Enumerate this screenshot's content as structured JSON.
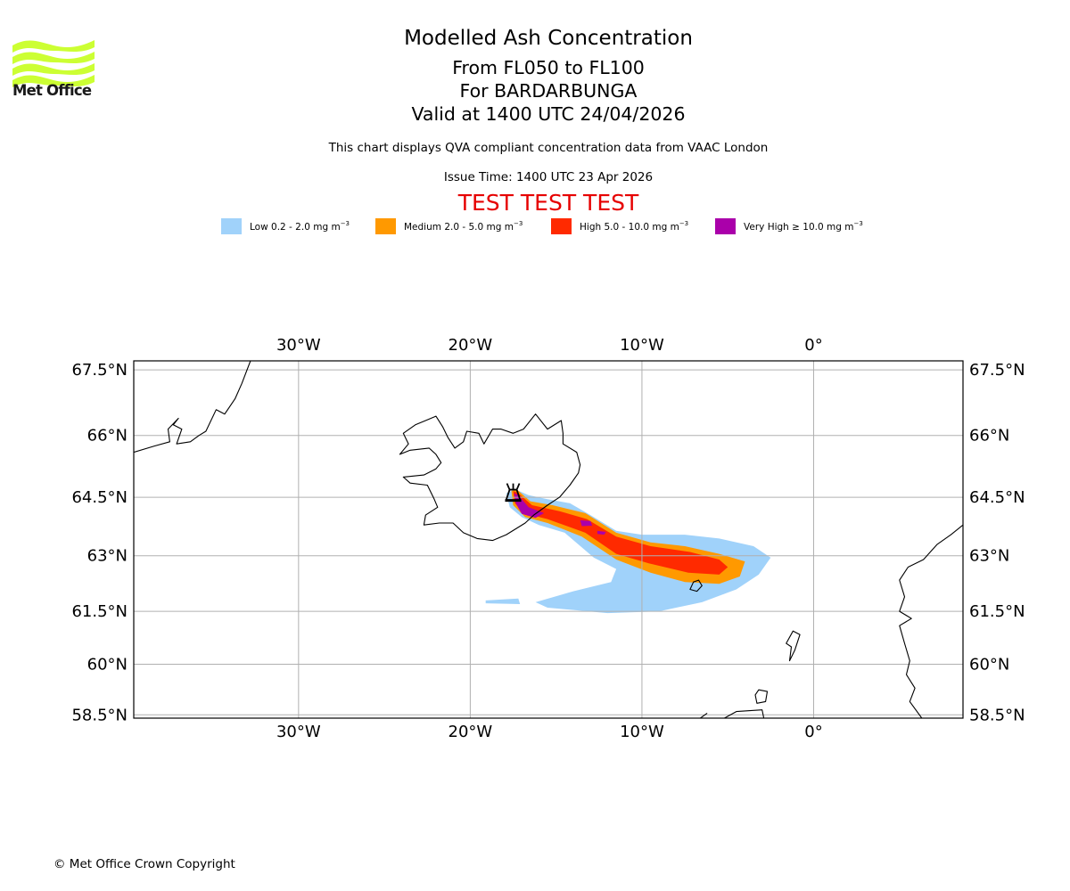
{
  "logo": {
    "text": "Met Office",
    "color": "#ccff33"
  },
  "titles": {
    "main": "Modelled Ash Concentration",
    "levels": "From FL050 to FL100",
    "volcano": "For BARDARBUNGA",
    "valid": "Valid at 1400 UTC 24/04/2026",
    "description": "This chart displays QVA compliant concentration data from VAAC London",
    "issue": "Issue Time: 1400 UTC 23 Apr 2026",
    "test_banner": "TEST TEST TEST"
  },
  "legend": [
    {
      "label": "Low 0.2 - 2.0 mg m",
      "exp": "−3",
      "color": "#a0d2fa"
    },
    {
      "label": "Medium 2.0 - 5.0 mg m",
      "exp": "−3",
      "color": "#ff9900"
    },
    {
      "label": "High 5.0 - 10.0 mg m",
      "exp": "−3",
      "color": "#ff2a00"
    },
    {
      "label": "Very High ≥ 10.0 mg m",
      "exp": "−3",
      "color": "#aa00aa"
    }
  ],
  "copyright": "© Met Office Crown Copyright",
  "chart_data": {
    "type": "map",
    "title": "Modelled Ash Concentration",
    "extent": {
      "lon": [
        -39.6,
        8.7
      ],
      "lat": [
        58.4,
        67.7
      ]
    },
    "grid": true,
    "lon_ticks": [
      {
        "value": -30,
        "label": "30°W"
      },
      {
        "value": -20,
        "label": "20°W"
      },
      {
        "value": -10,
        "label": "10°W"
      },
      {
        "value": 0,
        "label": "0°"
      }
    ],
    "lat_ticks": [
      {
        "value": 67.5,
        "label": "67.5°N"
      },
      {
        "value": 66,
        "label": "66°N"
      },
      {
        "value": 64.5,
        "label": "64.5°N"
      },
      {
        "value": 63,
        "label": "63°N"
      },
      {
        "value": 61.5,
        "label": "61.5°N"
      },
      {
        "value": 60,
        "label": "60°N"
      },
      {
        "value": 58.5,
        "label": "58.5°N"
      }
    ],
    "volcano": {
      "name": "BARDARBUNGA",
      "lon": -17.5,
      "lat": 64.6
    },
    "ash_layers": [
      {
        "level": "Low",
        "color": "#a0d2fa",
        "polygon": [
          [
            -17.9,
            64.6
          ],
          [
            -17.4,
            64.7
          ],
          [
            -16.6,
            64.55
          ],
          [
            -15.5,
            64.45
          ],
          [
            -14.2,
            64.35
          ],
          [
            -13,
            64.05
          ],
          [
            -11.5,
            63.65
          ],
          [
            -10,
            63.55
          ],
          [
            -7.5,
            63.55
          ],
          [
            -5.5,
            63.45
          ],
          [
            -3.5,
            63.25
          ],
          [
            -2.5,
            62.95
          ],
          [
            -3.2,
            62.5
          ],
          [
            -4.5,
            62.1
          ],
          [
            -6.5,
            61.75
          ],
          [
            -9,
            61.5
          ],
          [
            -12,
            61.45
          ],
          [
            -15.5,
            61.6
          ],
          [
            -16.2,
            61.75
          ],
          [
            -14,
            62.05
          ],
          [
            -11.8,
            62.3
          ],
          [
            -11.5,
            62.65
          ],
          [
            -12.8,
            62.95
          ],
          [
            -14.5,
            63.6
          ],
          [
            -16,
            63.8
          ],
          [
            -17,
            64.0
          ],
          [
            -17.7,
            64.25
          ]
        ]
      },
      {
        "level": "Low",
        "color": "#a0d2fa",
        "polygon": [
          [
            -19.1,
            61.8
          ],
          [
            -17.2,
            61.85
          ],
          [
            -17.1,
            61.7
          ],
          [
            -19.1,
            61.72
          ]
        ]
      },
      {
        "level": "Medium",
        "color": "#ff9900",
        "polygon": [
          [
            -17.6,
            64.65
          ],
          [
            -17.3,
            64.7
          ],
          [
            -16.5,
            64.4
          ],
          [
            -15.2,
            64.3
          ],
          [
            -13.3,
            64.1
          ],
          [
            -11.5,
            63.6
          ],
          [
            -9.5,
            63.35
          ],
          [
            -7.5,
            63.25
          ],
          [
            -5.5,
            63.05
          ],
          [
            -4.0,
            62.85
          ],
          [
            -4.3,
            62.45
          ],
          [
            -5.5,
            62.25
          ],
          [
            -7.5,
            62.3
          ],
          [
            -9.5,
            62.55
          ],
          [
            -11.5,
            62.9
          ],
          [
            -13.5,
            63.5
          ],
          [
            -15.5,
            63.85
          ],
          [
            -16.8,
            64.0
          ],
          [
            -17.5,
            64.3
          ]
        ]
      },
      {
        "level": "High",
        "color": "#ff2a00",
        "polygon": [
          [
            -17.5,
            64.65
          ],
          [
            -17.25,
            64.62
          ],
          [
            -16.4,
            64.3
          ],
          [
            -14.8,
            64.15
          ],
          [
            -13.2,
            63.95
          ],
          [
            -11.5,
            63.5
          ],
          [
            -9.5,
            63.25
          ],
          [
            -7.2,
            63.1
          ],
          [
            -5.5,
            62.9
          ],
          [
            -5.0,
            62.7
          ],
          [
            -5.5,
            62.5
          ],
          [
            -7.3,
            62.55
          ],
          [
            -9.6,
            62.8
          ],
          [
            -11.5,
            63.05
          ],
          [
            -13.3,
            63.6
          ],
          [
            -15.5,
            63.95
          ],
          [
            -16.9,
            64.1
          ],
          [
            -17.4,
            64.35
          ]
        ]
      },
      {
        "level": "Very High",
        "color": "#aa00aa",
        "polygon": [
          [
            -17.45,
            64.6
          ],
          [
            -17.2,
            64.55
          ],
          [
            -16.6,
            64.25
          ],
          [
            -15.7,
            64.1
          ],
          [
            -16.2,
            63.98
          ],
          [
            -17.0,
            64.08
          ],
          [
            -17.35,
            64.35
          ]
        ]
      },
      {
        "level": "Very High",
        "color": "#aa00aa",
        "polygon": [
          [
            -13.6,
            63.92
          ],
          [
            -13.0,
            63.9
          ],
          [
            -12.9,
            63.78
          ],
          [
            -13.5,
            63.77
          ]
        ]
      },
      {
        "level": "Very High",
        "color": "#aa00aa",
        "polygon": [
          [
            -12.6,
            63.65
          ],
          [
            -12.1,
            63.62
          ],
          [
            -12.2,
            63.55
          ],
          [
            -12.6,
            63.57
          ]
        ]
      }
    ],
    "coastlines": [
      {
        "name": "iceland",
        "closed": true,
        "points": [
          [
            -22.0,
            65.55
          ],
          [
            -22.4,
            65.7
          ],
          [
            -23.5,
            65.65
          ],
          [
            -24.1,
            65.55
          ],
          [
            -23.6,
            65.8
          ],
          [
            -23.9,
            66.05
          ],
          [
            -23.2,
            66.25
          ],
          [
            -22.6,
            66.35
          ],
          [
            -22.0,
            66.45
          ],
          [
            -21.6,
            66.2
          ],
          [
            -21.3,
            65.95
          ],
          [
            -20.9,
            65.7
          ],
          [
            -20.4,
            65.85
          ],
          [
            -20.2,
            66.1
          ],
          [
            -19.5,
            66.05
          ],
          [
            -19.2,
            65.8
          ],
          [
            -18.7,
            66.15
          ],
          [
            -18.2,
            66.15
          ],
          [
            -17.5,
            66.05
          ],
          [
            -16.9,
            66.15
          ],
          [
            -16.2,
            66.5
          ],
          [
            -15.5,
            66.15
          ],
          [
            -14.7,
            66.35
          ],
          [
            -14.6,
            66.05
          ],
          [
            -14.6,
            65.8
          ],
          [
            -13.8,
            65.6
          ],
          [
            -13.6,
            65.3
          ],
          [
            -13.7,
            65.1
          ],
          [
            -14.2,
            64.8
          ],
          [
            -14.8,
            64.5
          ],
          [
            -15.5,
            64.3
          ],
          [
            -16.3,
            64.05
          ],
          [
            -16.8,
            63.85
          ],
          [
            -17.9,
            63.55
          ],
          [
            -18.7,
            63.4
          ],
          [
            -19.6,
            63.45
          ],
          [
            -20.4,
            63.6
          ],
          [
            -21.0,
            63.85
          ],
          [
            -21.8,
            63.85
          ],
          [
            -22.7,
            63.8
          ],
          [
            -22.6,
            64.05
          ],
          [
            -21.9,
            64.25
          ],
          [
            -22.1,
            64.45
          ],
          [
            -22.5,
            64.8
          ],
          [
            -23.5,
            64.85
          ],
          [
            -23.9,
            65.0
          ],
          [
            -22.7,
            65.05
          ],
          [
            -22.0,
            65.2
          ],
          [
            -21.7,
            65.35
          ]
        ]
      },
      {
        "name": "greenland",
        "closed": false,
        "points": [
          [
            -39.6,
            65.6
          ],
          [
            -38.4,
            65.75
          ],
          [
            -37.5,
            65.85
          ],
          [
            -37.6,
            66.15
          ],
          [
            -37.0,
            66.4
          ],
          [
            -37.3,
            66.25
          ],
          [
            -36.8,
            66.15
          ],
          [
            -37.1,
            65.8
          ],
          [
            -36.3,
            65.85
          ],
          [
            -35.8,
            66.0
          ],
          [
            -35.4,
            66.1
          ],
          [
            -34.8,
            66.6
          ],
          [
            -34.3,
            66.5
          ],
          [
            -33.7,
            66.85
          ],
          [
            -33.3,
            67.2
          ],
          [
            -32.8,
            67.7
          ]
        ]
      },
      {
        "name": "norway",
        "closed": false,
        "points": [
          [
            8.7,
            63.8
          ],
          [
            8.0,
            63.55
          ],
          [
            7.2,
            63.3
          ],
          [
            6.4,
            62.9
          ],
          [
            5.5,
            62.7
          ],
          [
            5.0,
            62.35
          ],
          [
            5.3,
            61.9
          ],
          [
            5.0,
            61.5
          ],
          [
            5.7,
            61.3
          ],
          [
            5.0,
            61.1
          ],
          [
            5.3,
            60.6
          ],
          [
            5.6,
            60.1
          ],
          [
            5.4,
            59.7
          ],
          [
            5.9,
            59.3
          ],
          [
            5.6,
            58.9
          ],
          [
            6.3,
            58.4
          ]
        ]
      },
      {
        "name": "faroes",
        "closed": true,
        "points": [
          [
            -7.0,
            62.3
          ],
          [
            -6.7,
            62.35
          ],
          [
            -6.5,
            62.2
          ],
          [
            -6.8,
            62.05
          ],
          [
            -7.2,
            62.1
          ]
        ]
      },
      {
        "name": "shetland",
        "closed": true,
        "points": [
          [
            -1.2,
            60.95
          ],
          [
            -0.8,
            60.85
          ],
          [
            -1.1,
            60.4
          ],
          [
            -1.4,
            60.1
          ],
          [
            -1.3,
            60.5
          ],
          [
            -1.6,
            60.6
          ]
        ]
      },
      {
        "name": "orkney",
        "closed": true,
        "points": [
          [
            -3.2,
            59.25
          ],
          [
            -2.7,
            59.2
          ],
          [
            -2.8,
            58.9
          ],
          [
            -3.3,
            58.85
          ],
          [
            -3.4,
            59.1
          ]
        ]
      },
      {
        "name": "scotland",
        "closed": false,
        "points": [
          [
            -5.2,
            58.4
          ],
          [
            -4.5,
            58.6
          ],
          [
            -3.0,
            58.65
          ],
          [
            -2.9,
            58.4
          ]
        ]
      },
      {
        "name": "lewis",
        "closed": false,
        "points": [
          [
            -6.6,
            58.4
          ],
          [
            -6.2,
            58.55
          ]
        ]
      }
    ]
  }
}
